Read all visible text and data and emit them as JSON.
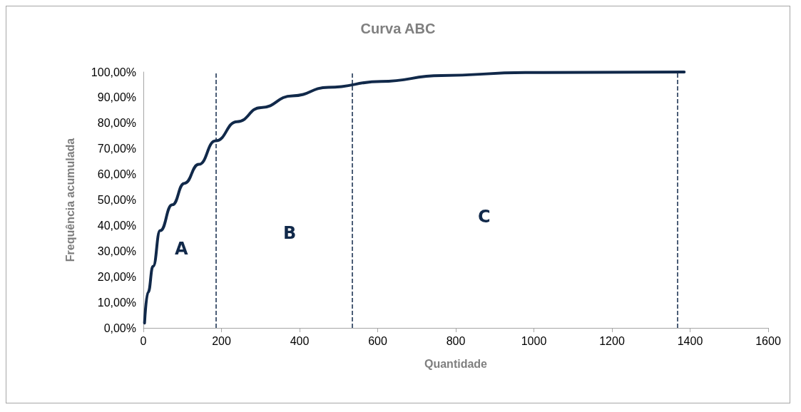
{
  "chart_data": {
    "type": "line",
    "title": "Curva ABC",
    "xlabel": "Quantidade",
    "ylabel": "Frequência acumulada",
    "x": [
      3,
      12,
      25,
      43,
      74,
      105,
      142,
      185,
      240,
      301,
      382,
      474,
      609,
      763,
      978,
      1385
    ],
    "series": [
      {
        "color": "#11294a",
        "values": [
          1.9,
          13.9,
          24.1,
          38,
          48.1,
          56.5,
          63.9,
          73.1,
          80.6,
          86.1,
          90.7,
          94,
          96.3,
          98.6,
          99.8,
          100
        ]
      }
    ],
    "xlim": [
      0,
      1600
    ],
    "xticks": [
      0,
      200,
      400,
      600,
      800,
      1000,
      1200,
      1400,
      1600
    ],
    "ylim": [
      0,
      100
    ],
    "yticks": [
      {
        "value": 0,
        "label": "0,00%"
      },
      {
        "value": 10,
        "label": "10,00%"
      },
      {
        "value": 20,
        "label": "20,00%"
      },
      {
        "value": 30,
        "label": "30,00%"
      },
      {
        "value": 40,
        "label": "40,00%"
      },
      {
        "value": 50,
        "label": "50,00%"
      },
      {
        "value": 60,
        "label": "60,00%"
      },
      {
        "value": 70,
        "label": "70,00%"
      },
      {
        "value": 80,
        "label": "80,00%"
      },
      {
        "value": 90,
        "label": "90,00%"
      },
      {
        "value": 100,
        "label": "100,00%"
      }
    ],
    "ref_lines": [
      {
        "axis": "x",
        "value": 186,
        "color": "#11294a",
        "line_style": "dashed"
      },
      {
        "axis": "x",
        "value": 534,
        "color": "#11294a",
        "line_style": "dashed"
      },
      {
        "axis": "x",
        "value": 1368,
        "color": "#11294a",
        "line_style": "dashed"
      }
    ],
    "annotations": [
      "A",
      "B",
      "C"
    ],
    "grid": false,
    "marker": "none",
    "line_style": "solid"
  }
}
